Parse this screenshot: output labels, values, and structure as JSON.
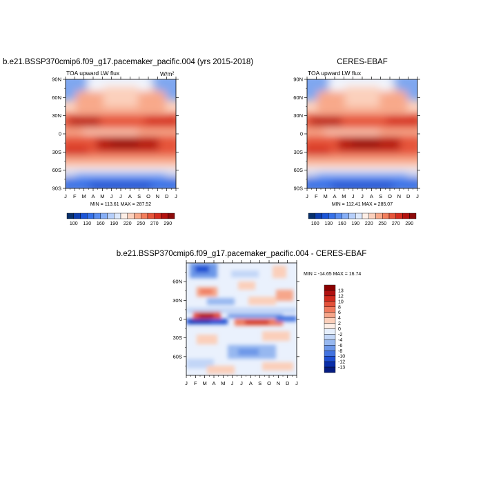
{
  "chart_data": [
    {
      "type": "heatmap",
      "title": "b.e21.BSSP370cmip6.f09_g17.pacemaker_pacific.004 (yrs 2015-2018)",
      "subtitle": "TOA upward LW flux",
      "units": "W/m²",
      "x_ticks": [
        "J",
        "F",
        "M",
        "A",
        "M",
        "J",
        "J",
        "A",
        "S",
        "O",
        "N",
        "D",
        "J"
      ],
      "y_ticks": [
        "90N",
        "60N",
        "30N",
        "0",
        "30S",
        "60S",
        "90S"
      ],
      "stats": "MIN = 113.61 MAX = 287.52",
      "colorbar_labels": [
        "100",
        "130",
        "160",
        "190",
        "220",
        "250",
        "270",
        "290"
      ],
      "colormap": [
        "#08306b",
        "#0d3fb0",
        "#1c55d6",
        "#3671e8",
        "#5a8ef0",
        "#86aef5",
        "#b6cffa",
        "#dce8fc",
        "#fdeee6",
        "#fbd0bc",
        "#f8a98a",
        "#f27e5c",
        "#e6553a",
        "#d42d1f",
        "#b3120f",
        "#8c0a0a"
      ],
      "ylim": [
        -90,
        90
      ],
      "xlim": [
        0,
        12
      ]
    },
    {
      "type": "heatmap",
      "title": "CERES-EBAF",
      "subtitle": "TOA upward LW flux",
      "x_ticks": [
        "J",
        "F",
        "M",
        "A",
        "M",
        "J",
        "J",
        "A",
        "S",
        "O",
        "N",
        "D",
        "J"
      ],
      "y_ticks": [
        "90N",
        "60N",
        "30N",
        "0",
        "30S",
        "60S",
        "90S"
      ],
      "stats": "MIN = 112.41 MAX = 285.07",
      "colorbar_labels": [
        "100",
        "130",
        "160",
        "190",
        "220",
        "250",
        "270",
        "290"
      ],
      "ylim": [
        -90,
        90
      ],
      "xlim": [
        0,
        12
      ]
    },
    {
      "type": "heatmap",
      "title": "b.e21.BSSP370cmip6.f09_g17.pacemaker_pacific.004 - CERES-EBAF",
      "x_ticks": [
        "J",
        "F",
        "M",
        "A",
        "M",
        "J",
        "J",
        "A",
        "S",
        "O",
        "N",
        "D",
        "J"
      ],
      "y_ticks": [
        "60N",
        "30N",
        "0",
        "30S",
        "60S"
      ],
      "stats": "MIN = -14.65 MAX =  16.74",
      "colorbar_labels": [
        "13",
        "12",
        "10",
        "8",
        "6",
        "4",
        "2",
        "0",
        "-2",
        "-4",
        "-6",
        "-8",
        "-10",
        "-12",
        "-13"
      ],
      "colormap": [
        "#8b0000",
        "#b01010",
        "#d02a1e",
        "#e3513a",
        "#ef7a5e",
        "#f6a68a",
        "#fbcfba",
        "#fdeee6",
        "#e6effc",
        "#c2d6f7",
        "#97b8f0",
        "#6c97e8",
        "#4373e0",
        "#1f4fd2",
        "#0a2eaa",
        "#051b80"
      ],
      "ylim": [
        -90,
        90
      ],
      "xlim": [
        0,
        12
      ]
    }
  ]
}
